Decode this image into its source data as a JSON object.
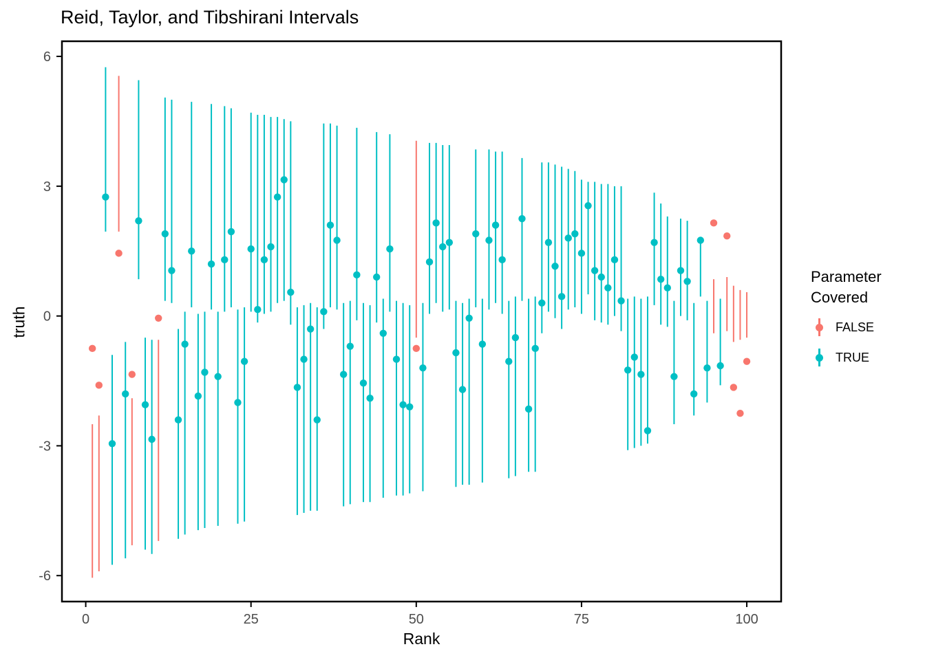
{
  "title": "Reid, Taylor, and Tibshirani Intervals",
  "chart_data": {
    "type": "scatter",
    "subtype": "interval-plot",
    "xlabel": "Rank",
    "ylabel": "truth",
    "xlim": [
      -3.6,
      105.2
    ],
    "ylim": [
      -6.6,
      6.35
    ],
    "x_ticks": [
      0,
      25,
      50,
      75,
      100
    ],
    "y_ticks": [
      -6,
      -3,
      0,
      3,
      6
    ],
    "grid": "off",
    "panel_border_color": "#000000",
    "tick_label_color": "#4D4D4D",
    "legend": {
      "position": "right",
      "title_line1": "Parameter",
      "title_line2": "Covered",
      "entries": [
        {
          "label": "FALSE",
          "color": "#F8766D"
        },
        {
          "label": "TRUE",
          "color": "#00BFC4"
        }
      ]
    },
    "colors": {
      "covered_true": "#00BFC4",
      "covered_false": "#F8766D"
    },
    "points": [
      {
        "rank": 1,
        "truth": -0.75,
        "lower": -6.05,
        "upper": -2.5,
        "covered": false
      },
      {
        "rank": 2,
        "truth": -1.6,
        "lower": -5.9,
        "upper": -2.3,
        "covered": false
      },
      {
        "rank": 3,
        "truth": 2.75,
        "lower": 1.95,
        "upper": 5.75,
        "covered": true
      },
      {
        "rank": 4,
        "truth": -2.95,
        "lower": -5.75,
        "upper": -0.9,
        "covered": true
      },
      {
        "rank": 5,
        "truth": 1.45,
        "lower": 1.95,
        "upper": 5.55,
        "covered": false
      },
      {
        "rank": 6,
        "truth": -1.8,
        "lower": -5.6,
        "upper": -0.6,
        "covered": true
      },
      {
        "rank": 7,
        "truth": -1.35,
        "lower": -5.3,
        "upper": -1.9,
        "covered": false
      },
      {
        "rank": 8,
        "truth": 2.2,
        "lower": 0.85,
        "upper": 5.45,
        "covered": true
      },
      {
        "rank": 9,
        "truth": -2.05,
        "lower": -5.4,
        "upper": -0.5,
        "covered": true
      },
      {
        "rank": 10,
        "truth": -2.85,
        "lower": -5.5,
        "upper": -0.55,
        "covered": true
      },
      {
        "rank": 11,
        "truth": -0.05,
        "lower": -5.2,
        "upper": -0.55,
        "covered": false
      },
      {
        "rank": 12,
        "truth": 1.9,
        "lower": 0.35,
        "upper": 5.05,
        "covered": true
      },
      {
        "rank": 13,
        "truth": 1.05,
        "lower": 0.3,
        "upper": 5.0,
        "covered": true
      },
      {
        "rank": 14,
        "truth": -2.4,
        "lower": -5.15,
        "upper": -0.3,
        "covered": true
      },
      {
        "rank": 15,
        "truth": -0.65,
        "lower": -5.05,
        "upper": 0.1,
        "covered": true
      },
      {
        "rank": 16,
        "truth": 1.5,
        "lower": 0.2,
        "upper": 4.95,
        "covered": true
      },
      {
        "rank": 17,
        "truth": -1.85,
        "lower": -4.95,
        "upper": 0.05,
        "covered": true
      },
      {
        "rank": 18,
        "truth": -1.3,
        "lower": -4.9,
        "upper": 0.1,
        "covered": true
      },
      {
        "rank": 19,
        "truth": 1.2,
        "lower": 0.15,
        "upper": 4.9,
        "covered": true
      },
      {
        "rank": 20,
        "truth": -1.4,
        "lower": -4.85,
        "upper": 0.1,
        "covered": true
      },
      {
        "rank": 21,
        "truth": 1.3,
        "lower": 0.1,
        "upper": 4.85,
        "covered": true
      },
      {
        "rank": 22,
        "truth": 1.95,
        "lower": 0.2,
        "upper": 4.8,
        "covered": true
      },
      {
        "rank": 23,
        "truth": -2.0,
        "lower": -4.8,
        "upper": 0.15,
        "covered": true
      },
      {
        "rank": 24,
        "truth": -1.05,
        "lower": -4.75,
        "upper": 0.2,
        "covered": true
      },
      {
        "rank": 25,
        "truth": 1.55,
        "lower": 0.1,
        "upper": 4.7,
        "covered": true
      },
      {
        "rank": 26,
        "truth": 0.15,
        "lower": -0.15,
        "upper": 4.65,
        "covered": true
      },
      {
        "rank": 27,
        "truth": 1.3,
        "lower": 0.05,
        "upper": 4.65,
        "covered": true
      },
      {
        "rank": 28,
        "truth": 1.6,
        "lower": 0.1,
        "upper": 4.6,
        "covered": true
      },
      {
        "rank": 29,
        "truth": 2.75,
        "lower": 0.3,
        "upper": 4.6,
        "covered": true
      },
      {
        "rank": 30,
        "truth": 3.15,
        "lower": 0.35,
        "upper": 4.55,
        "covered": true
      },
      {
        "rank": 31,
        "truth": 0.55,
        "lower": -0.2,
        "upper": 4.5,
        "covered": true
      },
      {
        "rank": 32,
        "truth": -1.65,
        "lower": -4.6,
        "upper": 0.2,
        "covered": true
      },
      {
        "rank": 33,
        "truth": -1.0,
        "lower": -4.55,
        "upper": 0.25,
        "covered": true
      },
      {
        "rank": 34,
        "truth": -0.3,
        "lower": -4.5,
        "upper": 0.3,
        "covered": true
      },
      {
        "rank": 35,
        "truth": -2.4,
        "lower": -4.5,
        "upper": 0.2,
        "covered": true
      },
      {
        "rank": 36,
        "truth": 0.1,
        "lower": -0.3,
        "upper": 4.45,
        "covered": true
      },
      {
        "rank": 37,
        "truth": 2.1,
        "lower": 0.2,
        "upper": 4.45,
        "covered": true
      },
      {
        "rank": 38,
        "truth": 1.75,
        "lower": 0.15,
        "upper": 4.4,
        "covered": true
      },
      {
        "rank": 39,
        "truth": -1.35,
        "lower": -4.4,
        "upper": 0.3,
        "covered": true
      },
      {
        "rank": 40,
        "truth": -0.7,
        "lower": -4.35,
        "upper": 0.35,
        "covered": true
      },
      {
        "rank": 41,
        "truth": 0.95,
        "lower": -0.1,
        "upper": 4.35,
        "covered": true
      },
      {
        "rank": 42,
        "truth": -1.55,
        "lower": -4.3,
        "upper": 0.3,
        "covered": true
      },
      {
        "rank": 43,
        "truth": -1.9,
        "lower": -4.3,
        "upper": 0.25,
        "covered": true
      },
      {
        "rank": 44,
        "truth": 0.9,
        "lower": -0.15,
        "upper": 4.25,
        "covered": true
      },
      {
        "rank": 45,
        "truth": -0.4,
        "lower": -4.2,
        "upper": 0.4,
        "covered": true
      },
      {
        "rank": 46,
        "truth": 1.55,
        "lower": 0.1,
        "upper": 4.2,
        "covered": true
      },
      {
        "rank": 47,
        "truth": -1.0,
        "lower": -4.15,
        "upper": 0.35,
        "covered": true
      },
      {
        "rank": 48,
        "truth": -2.05,
        "lower": -4.15,
        "upper": 0.3,
        "covered": true
      },
      {
        "rank": 49,
        "truth": -2.1,
        "lower": -4.1,
        "upper": 0.25,
        "covered": true
      },
      {
        "rank": 50,
        "truth": -0.75,
        "lower": -0.5,
        "upper": 4.05,
        "covered": false
      },
      {
        "rank": 51,
        "truth": -1.2,
        "lower": -4.05,
        "upper": 0.3,
        "covered": true
      },
      {
        "rank": 52,
        "truth": 1.25,
        "lower": 0.05,
        "upper": 4.0,
        "covered": true
      },
      {
        "rank": 53,
        "truth": 2.15,
        "lower": 0.3,
        "upper": 4.0,
        "covered": true
      },
      {
        "rank": 54,
        "truth": 1.6,
        "lower": 0.1,
        "upper": 3.95,
        "covered": true
      },
      {
        "rank": 55,
        "truth": 1.7,
        "lower": 0.15,
        "upper": 3.95,
        "covered": true
      },
      {
        "rank": 56,
        "truth": -0.85,
        "lower": -3.95,
        "upper": 0.35,
        "covered": true
      },
      {
        "rank": 57,
        "truth": -1.7,
        "lower": -3.9,
        "upper": 0.3,
        "covered": true
      },
      {
        "rank": 58,
        "truth": -0.05,
        "lower": -3.9,
        "upper": 0.4,
        "covered": true
      },
      {
        "rank": 59,
        "truth": 1.9,
        "lower": 0.2,
        "upper": 3.85,
        "covered": true
      },
      {
        "rank": 60,
        "truth": -0.65,
        "lower": -3.85,
        "upper": 0.4,
        "covered": true
      },
      {
        "rank": 61,
        "truth": 1.75,
        "lower": 0.15,
        "upper": 3.85,
        "covered": true
      },
      {
        "rank": 62,
        "truth": 2.1,
        "lower": 0.3,
        "upper": 3.8,
        "covered": true
      },
      {
        "rank": 63,
        "truth": 1.3,
        "lower": 0.05,
        "upper": 3.8,
        "covered": true
      },
      {
        "rank": 64,
        "truth": -1.05,
        "lower": -3.75,
        "upper": 0.35,
        "covered": true
      },
      {
        "rank": 65,
        "truth": -0.5,
        "lower": -3.7,
        "upper": 0.45,
        "covered": true
      },
      {
        "rank": 66,
        "truth": 2.25,
        "lower": 0.35,
        "upper": 3.65,
        "covered": true
      },
      {
        "rank": 67,
        "truth": -2.15,
        "lower": -3.6,
        "upper": 0.4,
        "covered": true
      },
      {
        "rank": 68,
        "truth": -0.75,
        "lower": -3.6,
        "upper": 0.45,
        "covered": true
      },
      {
        "rank": 69,
        "truth": 0.3,
        "lower": -0.4,
        "upper": 3.55,
        "covered": true
      },
      {
        "rank": 70,
        "truth": 1.7,
        "lower": 0.1,
        "upper": 3.55,
        "covered": true
      },
      {
        "rank": 71,
        "truth": 1.15,
        "lower": -0.05,
        "upper": 3.5,
        "covered": true
      },
      {
        "rank": 72,
        "truth": 0.45,
        "lower": -0.3,
        "upper": 3.45,
        "covered": true
      },
      {
        "rank": 73,
        "truth": 1.8,
        "lower": 0.15,
        "upper": 3.4,
        "covered": true
      },
      {
        "rank": 74,
        "truth": 1.9,
        "lower": 0.2,
        "upper": 3.35,
        "covered": true
      },
      {
        "rank": 75,
        "truth": 1.45,
        "lower": 0.05,
        "upper": 3.15,
        "covered": true
      },
      {
        "rank": 76,
        "truth": 2.55,
        "lower": 0.5,
        "upper": 3.1,
        "covered": true
      },
      {
        "rank": 77,
        "truth": 1.05,
        "lower": -0.1,
        "upper": 3.1,
        "covered": true
      },
      {
        "rank": 78,
        "truth": 0.9,
        "lower": -0.15,
        "upper": 3.05,
        "covered": true
      },
      {
        "rank": 79,
        "truth": 0.65,
        "lower": -0.2,
        "upper": 3.05,
        "covered": true
      },
      {
        "rank": 80,
        "truth": 1.3,
        "lower": 0.0,
        "upper": 3.0,
        "covered": true
      },
      {
        "rank": 81,
        "truth": 0.35,
        "lower": -0.35,
        "upper": 3.0,
        "covered": true
      },
      {
        "rank": 82,
        "truth": -1.25,
        "lower": -3.1,
        "upper": 0.4,
        "covered": true
      },
      {
        "rank": 83,
        "truth": -0.95,
        "lower": -3.05,
        "upper": 0.45,
        "covered": true
      },
      {
        "rank": 84,
        "truth": -1.35,
        "lower": -3.0,
        "upper": 0.4,
        "covered": true
      },
      {
        "rank": 85,
        "truth": -2.65,
        "lower": -2.95,
        "upper": 0.45,
        "covered": true
      },
      {
        "rank": 86,
        "truth": 1.7,
        "lower": 0.25,
        "upper": 2.85,
        "covered": true
      },
      {
        "rank": 87,
        "truth": 0.85,
        "lower": -0.2,
        "upper": 2.6,
        "covered": true
      },
      {
        "rank": 88,
        "truth": 0.65,
        "lower": -0.25,
        "upper": 2.3,
        "covered": true
      },
      {
        "rank": 89,
        "truth": -1.4,
        "lower": -2.5,
        "upper": 0.35,
        "covered": true
      },
      {
        "rank": 90,
        "truth": 1.05,
        "lower": 0.0,
        "upper": 2.25,
        "covered": true
      },
      {
        "rank": 91,
        "truth": 0.8,
        "lower": -0.1,
        "upper": 2.2,
        "covered": true
      },
      {
        "rank": 92,
        "truth": -1.8,
        "lower": -2.3,
        "upper": 0.3,
        "covered": true
      },
      {
        "rank": 93,
        "truth": 1.75,
        "lower": 0.45,
        "upper": 1.8,
        "covered": true
      },
      {
        "rank": 94,
        "truth": -1.2,
        "lower": -2.0,
        "upper": 0.35,
        "covered": true
      },
      {
        "rank": 95,
        "truth": 2.15,
        "lower": -0.4,
        "upper": 0.85,
        "covered": false
      },
      {
        "rank": 96,
        "truth": -1.15,
        "lower": -1.6,
        "upper": 0.4,
        "covered": true
      },
      {
        "rank": 97,
        "truth": 1.85,
        "lower": -0.35,
        "upper": 0.9,
        "covered": false
      },
      {
        "rank": 98,
        "truth": -1.65,
        "lower": -0.6,
        "upper": 0.7,
        "covered": false
      },
      {
        "rank": 99,
        "truth": -2.25,
        "lower": -0.55,
        "upper": 0.6,
        "covered": false
      },
      {
        "rank": 100,
        "truth": -1.05,
        "lower": -0.5,
        "upper": 0.55,
        "covered": false
      }
    ]
  }
}
